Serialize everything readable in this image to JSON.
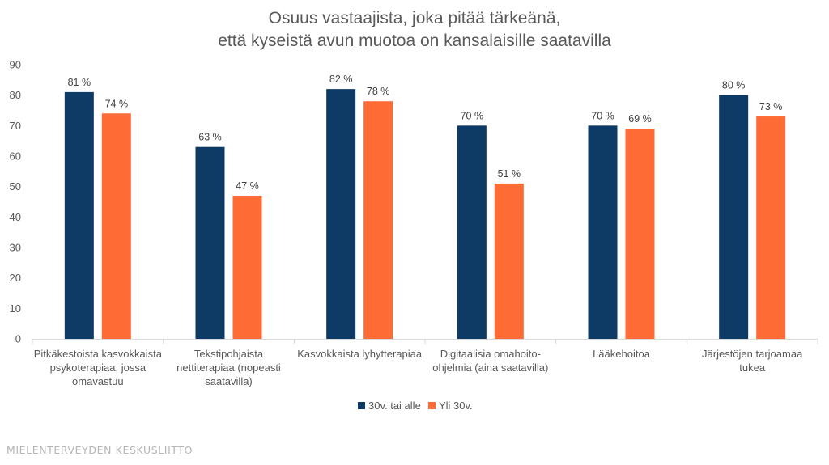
{
  "chart_data": {
    "type": "bar",
    "title": [
      "Osuus vastaajista, joka pitää tärkeänä,",
      "että kyseistä avun muotoa on kansalaisille saatavilla"
    ],
    "xlabel": "",
    "ylabel": "",
    "ylim": [
      0,
      90
    ],
    "yticks": [
      0,
      10,
      20,
      30,
      40,
      50,
      60,
      70,
      80,
      90
    ],
    "grid": false,
    "legend_position": "bottom-center",
    "categories": [
      [
        "Pitkäkestoista kasvokkaista",
        "psykoterapiaa, jossa",
        "omavastuu"
      ],
      [
        "Tekstipohjaista",
        "nettiterapiaa (nopeasti",
        "saatavilla)"
      ],
      [
        "Kasvokkaista lyhytterapiaa"
      ],
      [
        "Digitaalisia omahoito-",
        "ohjelmia (aina saatavilla)"
      ],
      [
        "Lääkehoitoa"
      ],
      [
        "Järjestöjen tarjoamaa",
        "tukea"
      ]
    ],
    "series": [
      {
        "name": "30v. tai alle",
        "color": "#0E3A66",
        "values": [
          81,
          63,
          82,
          70,
          70,
          80
        ],
        "labels": [
          "81 %",
          "63 %",
          "82 %",
          "70 %",
          "70 %",
          "80 %"
        ]
      },
      {
        "name": "Yli 30v.",
        "color": "#FF6B35",
        "values": [
          74,
          47,
          78,
          51,
          69,
          73
        ],
        "labels": [
          "74 %",
          "47 %",
          "78 %",
          "51 %",
          "69 %",
          "73 %"
        ]
      }
    ]
  },
  "footer": {
    "text": "MIELENTERVEYDEN KESKUSLIITTO"
  }
}
